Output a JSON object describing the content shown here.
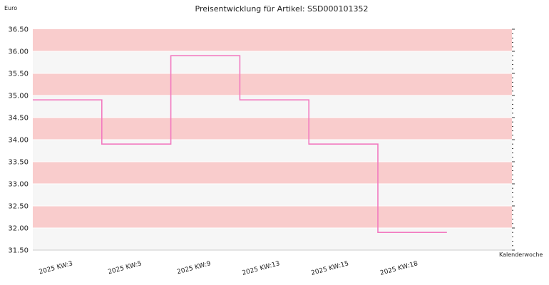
{
  "chart_data": {
    "type": "line",
    "step": true,
    "title": "Preisentwicklung für Artikel: SSD000101352",
    "ylabel": "Euro",
    "xlabel": "Kalenderwoche",
    "ylim": [
      31.5,
      36.5
    ],
    "ytick_step": 0.5,
    "categories": [
      "2025 KW:3",
      "2025 KW:5",
      "2025 KW:9",
      "2025 KW:13",
      "2025 KW:15",
      "2025 KW:18"
    ],
    "series": [
      {
        "values": [
          34.9,
          33.9,
          35.9,
          34.9,
          33.9,
          31.9
        ]
      }
    ],
    "colors": {
      "line": "#f27ac0",
      "band_dark": "#f9cccc",
      "band_light": "#f6f6f6",
      "grid": "#ffffff",
      "axis": "#cccccc"
    },
    "grid": true,
    "legend": false
  }
}
